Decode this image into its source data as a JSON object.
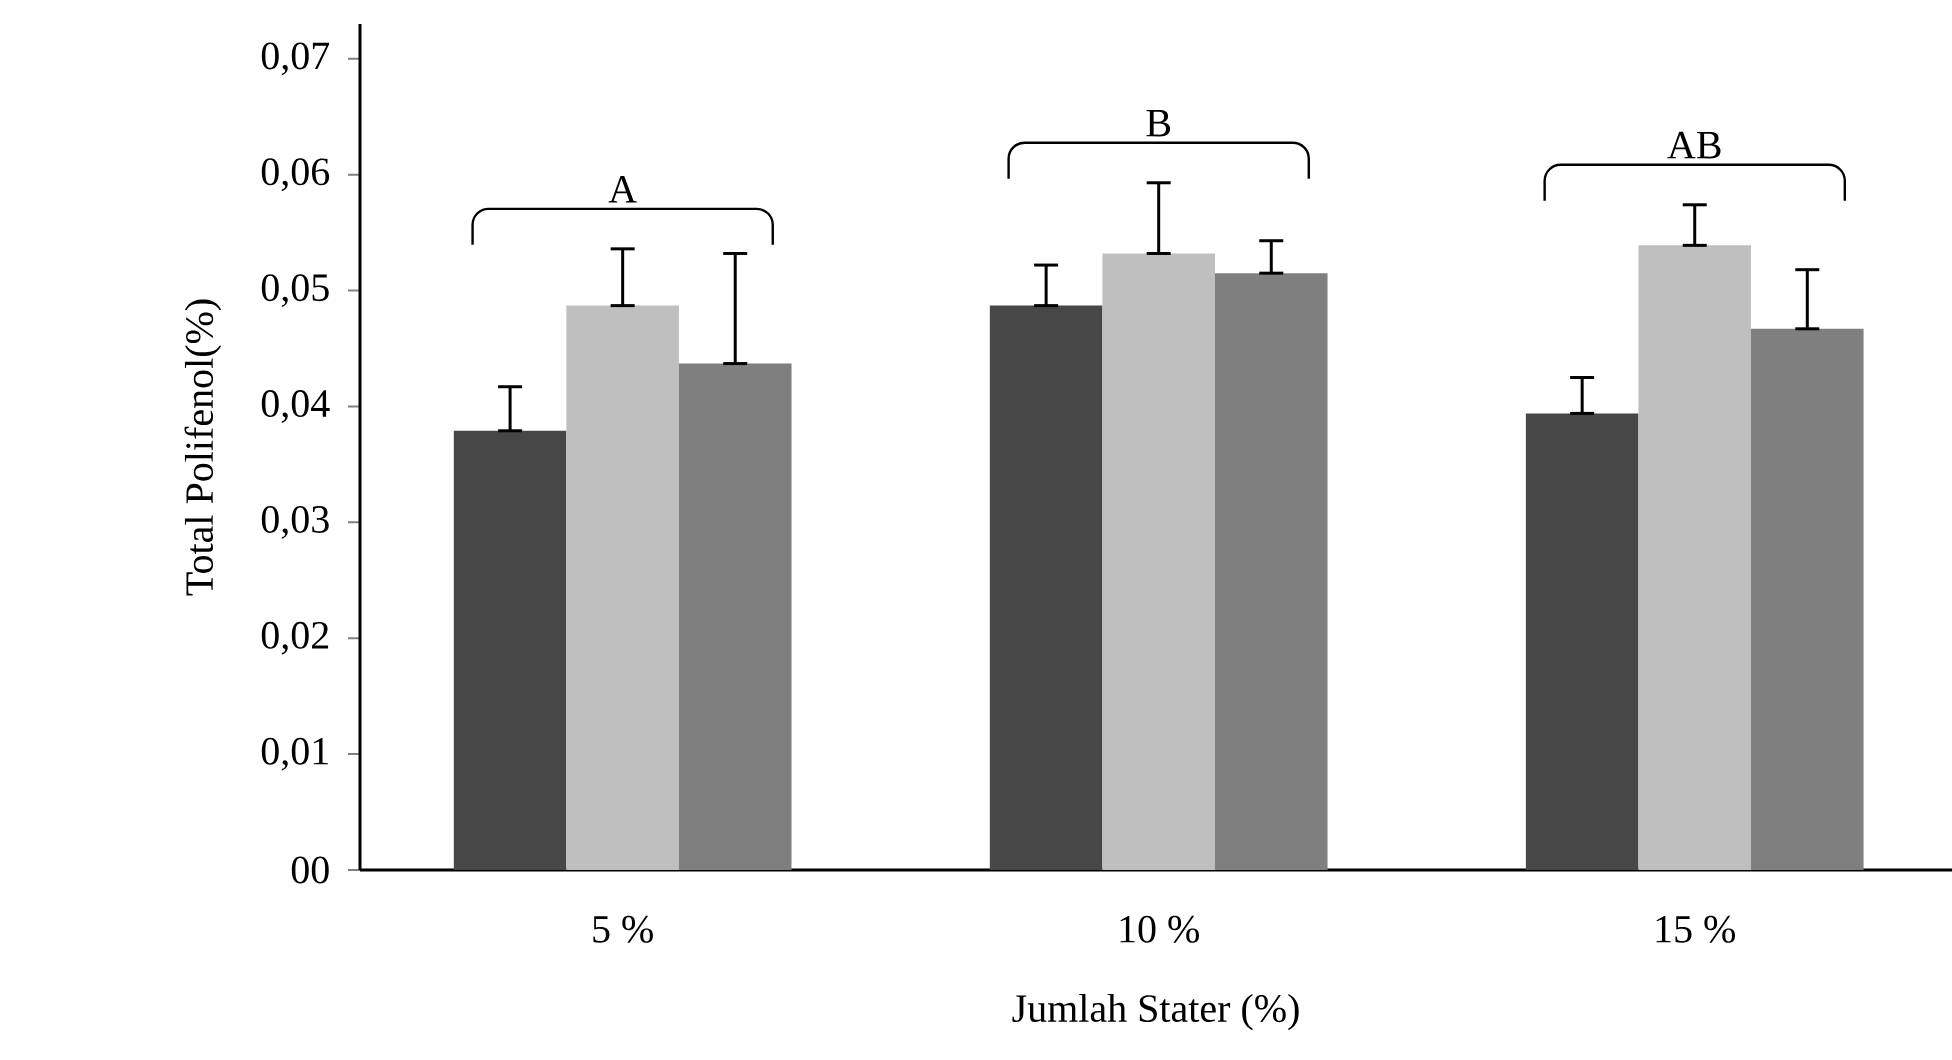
{
  "chart_data": {
    "type": "bar",
    "xlabel": "Jumlah Stater (%)",
    "ylabel": "Total Polifenol(%)",
    "categories": [
      "5 %",
      "10  %",
      "15  %"
    ],
    "series": [
      {
        "color": "#474747",
        "values": [
          0.0379,
          0.0487,
          0.0394
        ],
        "errors": [
          [
            0.0379,
            0.0417
          ],
          [
            0.0487,
            0.0522
          ],
          [
            0.0394,
            0.0425
          ]
        ]
      },
      {
        "color": "#bfbfbf",
        "values": [
          0.0487,
          0.0532,
          0.0539
        ],
        "errors": [
          [
            0.0487,
            0.0536
          ],
          [
            0.0532,
            0.0593
          ],
          [
            0.0539,
            0.0574
          ]
        ]
      },
      {
        "color": "#7f7f7f",
        "values": [
          0.0437,
          0.0515,
          0.0467
        ],
        "errors": [
          [
            0.0437,
            0.0532
          ],
          [
            0.0515,
            0.0543
          ],
          [
            0.0467,
            0.0518
          ]
        ]
      }
    ],
    "ylim": [
      0,
      0.073
    ],
    "yticks": [
      {
        "value": 0,
        "label": "00"
      },
      {
        "value": 0.01,
        "label": "0,01"
      },
      {
        "value": 0.02,
        "label": "0,02"
      },
      {
        "value": 0.03,
        "label": "0,03"
      },
      {
        "value": 0.04,
        "label": "0,04"
      },
      {
        "value": 0.05,
        "label": "0,05"
      },
      {
        "value": 0.06,
        "label": "0,06"
      },
      {
        "value": 0.07,
        "label": "0,07"
      }
    ],
    "annotations": [
      "A",
      "B",
      "AB"
    ],
    "grid": false
  }
}
